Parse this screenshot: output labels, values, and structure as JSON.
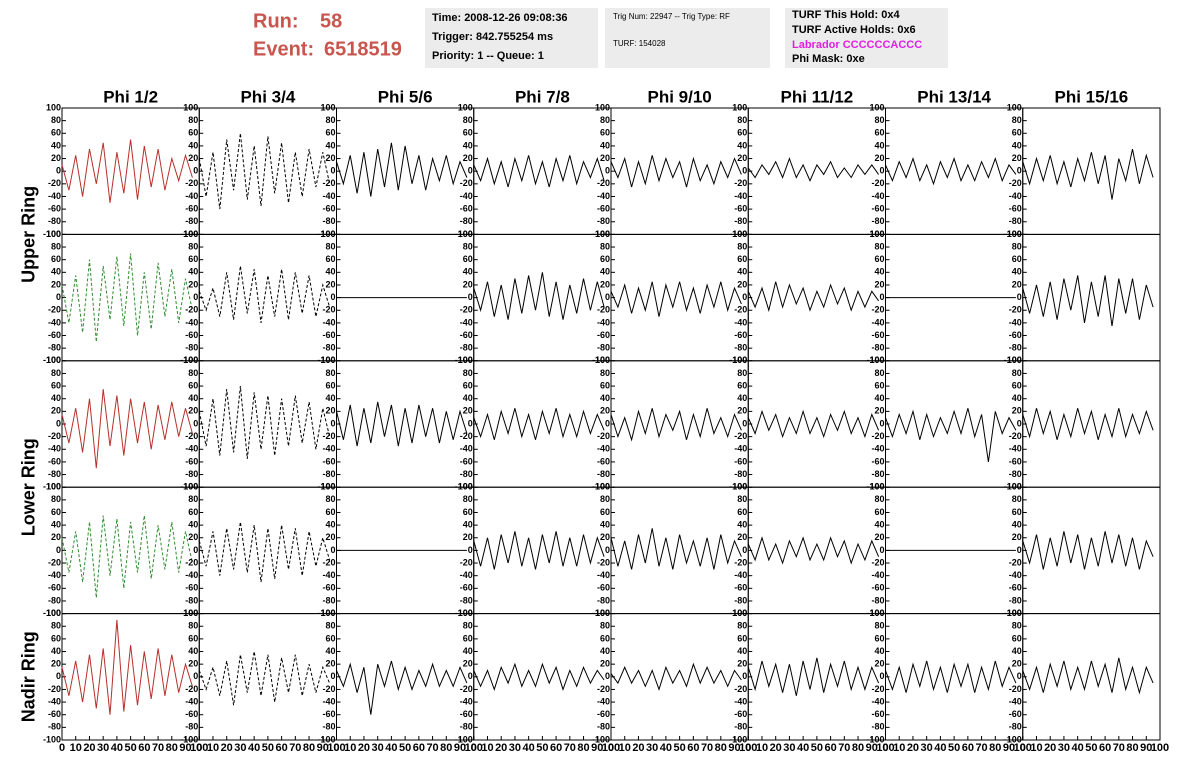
{
  "header": {
    "run_label": "Run:",
    "run": 58,
    "event_label": "Event:",
    "event": 6518519,
    "time": "Time: 2008-12-26 09:08:36",
    "trigger": "Trigger: 842.755254 ms",
    "priority": "Priority: 1 -- Queue: 1",
    "trig_num": "Trig Num: 22947 -- Trig Type: RF",
    "turf": "TURF: 154028",
    "turf_hold": "TURF This Hold: 0x4",
    "turf_active": "TURF Active Holds: 0x6",
    "labrador": "Labrador CCCCCCACCC",
    "phi_mask": "Phi Mask: 0xe"
  },
  "chart_data": {
    "type": "line",
    "columns": [
      "Phi 1/2",
      "Phi 3/4",
      "Phi 5/6",
      "Phi 7/8",
      "Phi 9/10",
      "Phi 11/12",
      "Phi 13/14",
      "Phi 15/16"
    ],
    "ring_labels": [
      "Upper Ring",
      "Lower Ring",
      "Nadir Ring"
    ],
    "xlim": [
      0,
      100
    ],
    "ylim": [
      -100,
      100
    ],
    "xticks": [
      0,
      10,
      20,
      30,
      40,
      50,
      60,
      70,
      80,
      90,
      100
    ],
    "yticks": [
      -100,
      -80,
      -60,
      -40,
      -20,
      0,
      20,
      40,
      60,
      80,
      100
    ],
    "x": [
      0,
      5,
      10,
      15,
      20,
      25,
      30,
      35,
      40,
      45,
      50,
      55,
      60,
      65,
      70,
      75,
      80,
      85,
      90,
      95
    ],
    "panels": [
      [
        {
          "color": "#b8302a",
          "values": [
            10,
            -30,
            25,
            -40,
            35,
            -20,
            45,
            -50,
            30,
            -35,
            50,
            -45,
            40,
            -25,
            35,
            -30,
            20,
            -15,
            25,
            -10
          ]
        },
        {
          "color": "#000000",
          "dash": true,
          "values": [
            20,
            -40,
            30,
            -60,
            50,
            -30,
            60,
            -45,
            40,
            -55,
            55,
            -35,
            45,
            -50,
            30,
            -40,
            35,
            -25,
            30,
            -20
          ]
        },
        {
          "color": "#000000",
          "values": [
            15,
            -20,
            25,
            -35,
            30,
            -40,
            35,
            -25,
            45,
            -30,
            40,
            -20,
            25,
            -30,
            20,
            -15,
            25,
            -20,
            15,
            -10
          ]
        },
        {
          "color": "#000000",
          "values": [
            10,
            -15,
            20,
            -20,
            15,
            -25,
            20,
            -15,
            25,
            -20,
            15,
            -25,
            20,
            -15,
            25,
            -20,
            15,
            -10,
            20,
            -15
          ]
        },
        {
          "color": "#000000",
          "values": [
            15,
            -10,
            20,
            -25,
            15,
            -20,
            25,
            -15,
            20,
            -10,
            15,
            -25,
            20,
            -15,
            10,
            -20,
            15,
            -10,
            20,
            -5
          ]
        },
        {
          "color": "#000000",
          "values": [
            5,
            -10,
            10,
            -5,
            15,
            -10,
            20,
            -10,
            10,
            -15,
            10,
            -5,
            15,
            -10,
            5,
            -10,
            10,
            -5,
            10,
            -5
          ]
        },
        {
          "color": "#000000",
          "values": [
            10,
            -15,
            15,
            -10,
            20,
            -15,
            10,
            -20,
            15,
            -10,
            20,
            -15,
            10,
            -15,
            15,
            -10,
            20,
            -15,
            10,
            -5
          ]
        },
        {
          "color": "#000000",
          "values": [
            15,
            -20,
            20,
            -15,
            25,
            -20,
            15,
            -25,
            20,
            -15,
            30,
            -20,
            25,
            -45,
            20,
            -15,
            35,
            -20,
            25,
            -10
          ]
        }
      ],
      [
        {
          "color": "#2e8b2e",
          "dash": true,
          "values": [
            20,
            -40,
            35,
            -55,
            60,
            -70,
            50,
            -35,
            65,
            -45,
            70,
            -60,
            40,
            -50,
            55,
            -30,
            45,
            -40,
            30,
            -20
          ]
        },
        {
          "color": "#000000",
          "dash": true,
          "values": [
            10,
            -20,
            15,
            -30,
            40,
            -35,
            50,
            -25,
            45,
            -40,
            35,
            -30,
            45,
            -35,
            40,
            -25,
            35,
            -30,
            20,
            -15
          ]
        },
        {
          "color": "#000000",
          "values": [
            0,
            0,
            0,
            0,
            0,
            0,
            0,
            0,
            0,
            0,
            0,
            0,
            0,
            0,
            0,
            0,
            0,
            0,
            0,
            0
          ]
        },
        {
          "color": "#000000",
          "values": [
            15,
            -20,
            25,
            -30,
            20,
            -35,
            30,
            -25,
            35,
            -20,
            40,
            -30,
            25,
            -35,
            20,
            -25,
            30,
            -20,
            25,
            -15
          ]
        },
        {
          "color": "#000000",
          "values": [
            10,
            -15,
            20,
            -25,
            15,
            -20,
            25,
            -30,
            20,
            -15,
            25,
            -20,
            15,
            -25,
            20,
            -15,
            25,
            -20,
            15,
            -10
          ]
        },
        {
          "color": "#000000",
          "values": [
            10,
            -15,
            15,
            -20,
            25,
            -15,
            20,
            -10,
            15,
            -20,
            10,
            -15,
            20,
            -10,
            15,
            -20,
            10,
            -15,
            10,
            -5
          ]
        },
        {
          "color": "#000000",
          "values": [
            0,
            0,
            0,
            0,
            0,
            0,
            0,
            0,
            0,
            0,
            0,
            0,
            0,
            0,
            0,
            0,
            0,
            0,
            0,
            0
          ]
        },
        {
          "color": "#000000",
          "values": [
            15,
            -25,
            20,
            -30,
            25,
            -35,
            30,
            -20,
            35,
            -40,
            25,
            -30,
            35,
            -45,
            30,
            -25,
            30,
            -35,
            20,
            -15
          ]
        }
      ],
      [
        {
          "color": "#b8302a",
          "values": [
            15,
            -30,
            25,
            -45,
            40,
            -70,
            55,
            -35,
            45,
            -50,
            40,
            -30,
            35,
            -40,
            30,
            -25,
            35,
            -20,
            25,
            -15
          ]
        },
        {
          "color": "#000000",
          "dash": true,
          "values": [
            20,
            -35,
            40,
            -50,
            55,
            -45,
            60,
            -55,
            50,
            -40,
            45,
            -50,
            40,
            -35,
            45,
            -30,
            35,
            -40,
            25,
            -20
          ]
        },
        {
          "color": "#000000",
          "values": [
            20,
            -25,
            30,
            -35,
            25,
            -30,
            35,
            -20,
            30,
            -35,
            25,
            -30,
            30,
            -20,
            25,
            -30,
            20,
            -25,
            20,
            -15
          ]
        },
        {
          "color": "#000000",
          "values": [
            10,
            -20,
            15,
            -25,
            20,
            -15,
            25,
            -20,
            15,
            -25,
            20,
            -15,
            25,
            -20,
            15,
            -20,
            20,
            -15,
            15,
            -10
          ]
        },
        {
          "color": "#000000",
          "values": [
            15,
            -20,
            10,
            -25,
            20,
            -15,
            25,
            -20,
            15,
            -10,
            20,
            -25,
            15,
            -20,
            25,
            -15,
            10,
            -20,
            15,
            -10
          ]
        },
        {
          "color": "#000000",
          "values": [
            10,
            -15,
            20,
            -10,
            15,
            -20,
            10,
            -15,
            20,
            -15,
            10,
            -20,
            15,
            -10,
            20,
            -15,
            10,
            -20,
            15,
            -10
          ]
        },
        {
          "color": "#000000",
          "values": [
            10,
            -20,
            15,
            -15,
            20,
            -25,
            15,
            -20,
            10,
            -15,
            20,
            -15,
            25,
            -20,
            15,
            -60,
            20,
            -15,
            10,
            -10
          ]
        },
        {
          "color": "#000000",
          "values": [
            15,
            -20,
            25,
            -15,
            20,
            -25,
            15,
            -20,
            25,
            -15,
            20,
            -25,
            15,
            -20,
            25,
            -20,
            15,
            -15,
            20,
            -10
          ]
        }
      ],
      [
        {
          "color": "#2e8b2e",
          "dash": true,
          "values": [
            20,
            -35,
            30,
            -50,
            45,
            -75,
            55,
            -40,
            50,
            -60,
            45,
            -35,
            55,
            -45,
            40,
            -30,
            45,
            -35,
            30,
            -20
          ]
        },
        {
          "color": "#000000",
          "dash": true,
          "values": [
            15,
            -25,
            30,
            -40,
            35,
            -30,
            45,
            -35,
            40,
            -50,
            35,
            -45,
            40,
            -30,
            35,
            -40,
            30,
            -25,
            20,
            -15
          ]
        },
        {
          "color": "#000000",
          "values": [
            0,
            0,
            0,
            0,
            0,
            0,
            0,
            0,
            0,
            0,
            0,
            0,
            0,
            0,
            0,
            0,
            0,
            0,
            0,
            0
          ]
        },
        {
          "color": "#000000",
          "values": [
            15,
            -25,
            20,
            -30,
            25,
            -20,
            30,
            -25,
            20,
            -30,
            25,
            -20,
            30,
            -25,
            20,
            -25,
            25,
            -20,
            20,
            -10
          ]
        },
        {
          "color": "#000000",
          "values": [
            20,
            -25,
            15,
            -30,
            25,
            -20,
            35,
            -25,
            20,
            -30,
            25,
            -20,
            15,
            -25,
            20,
            -30,
            25,
            -20,
            15,
            -10
          ]
        },
        {
          "color": "#000000",
          "values": [
            10,
            -15,
            20,
            -15,
            10,
            -20,
            15,
            -10,
            20,
            -15,
            10,
            -15,
            20,
            -10,
            15,
            -20,
            10,
            -15,
            15,
            -10
          ]
        },
        {
          "color": "#000000",
          "values": [
            0,
            0,
            0,
            0,
            0,
            0,
            0,
            0,
            0,
            0,
            0,
            0,
            0,
            0,
            0,
            0,
            0,
            0,
            0,
            0
          ]
        },
        {
          "color": "#000000",
          "values": [
            15,
            -20,
            25,
            -30,
            20,
            -25,
            30,
            -20,
            25,
            -30,
            20,
            -25,
            30,
            -20,
            25,
            -25,
            20,
            -30,
            15,
            -10
          ]
        }
      ],
      [
        {
          "color": "#b8302a",
          "values": [
            15,
            -30,
            25,
            -40,
            35,
            -50,
            45,
            -60,
            90,
            -55,
            50,
            -45,
            40,
            -35,
            45,
            -30,
            35,
            -25,
            20,
            -15
          ]
        },
        {
          "color": "#000000",
          "dash": true,
          "values": [
            10,
            -20,
            15,
            -30,
            25,
            -45,
            35,
            -25,
            40,
            -30,
            35,
            -40,
            30,
            -25,
            35,
            -30,
            20,
            -25,
            15,
            -10
          ]
        },
        {
          "color": "#000000",
          "values": [
            10,
            -15,
            20,
            -25,
            15,
            -60,
            20,
            -15,
            25,
            -20,
            15,
            -20,
            10,
            -15,
            20,
            -15,
            10,
            -15,
            15,
            -10
          ]
        },
        {
          "color": "#000000",
          "values": [
            10,
            -15,
            10,
            -20,
            15,
            -10,
            20,
            -15,
            10,
            -15,
            20,
            -10,
            15,
            -20,
            10,
            -15,
            15,
            -10,
            10,
            -5
          ]
        },
        {
          "color": "#000000",
          "values": [
            5,
            -10,
            15,
            -10,
            10,
            -15,
            10,
            -20,
            15,
            -10,
            10,
            -15,
            20,
            -10,
            15,
            -10,
            10,
            -15,
            10,
            -5
          ]
        },
        {
          "color": "#000000",
          "values": [
            15,
            -20,
            25,
            -15,
            20,
            -25,
            20,
            -30,
            25,
            -20,
            30,
            -25,
            20,
            -15,
            25,
            -20,
            15,
            -20,
            15,
            -10
          ]
        },
        {
          "color": "#000000",
          "values": [
            10,
            -20,
            15,
            -25,
            20,
            -15,
            25,
            -20,
            15,
            -25,
            20,
            -15,
            20,
            -25,
            15,
            -20,
            25,
            -15,
            15,
            -10
          ]
        },
        {
          "color": "#000000",
          "values": [
            10,
            -20,
            15,
            -25,
            20,
            -15,
            25,
            -20,
            15,
            -20,
            25,
            -15,
            20,
            -25,
            30,
            -20,
            15,
            -25,
            15,
            -10
          ]
        }
      ]
    ]
  }
}
